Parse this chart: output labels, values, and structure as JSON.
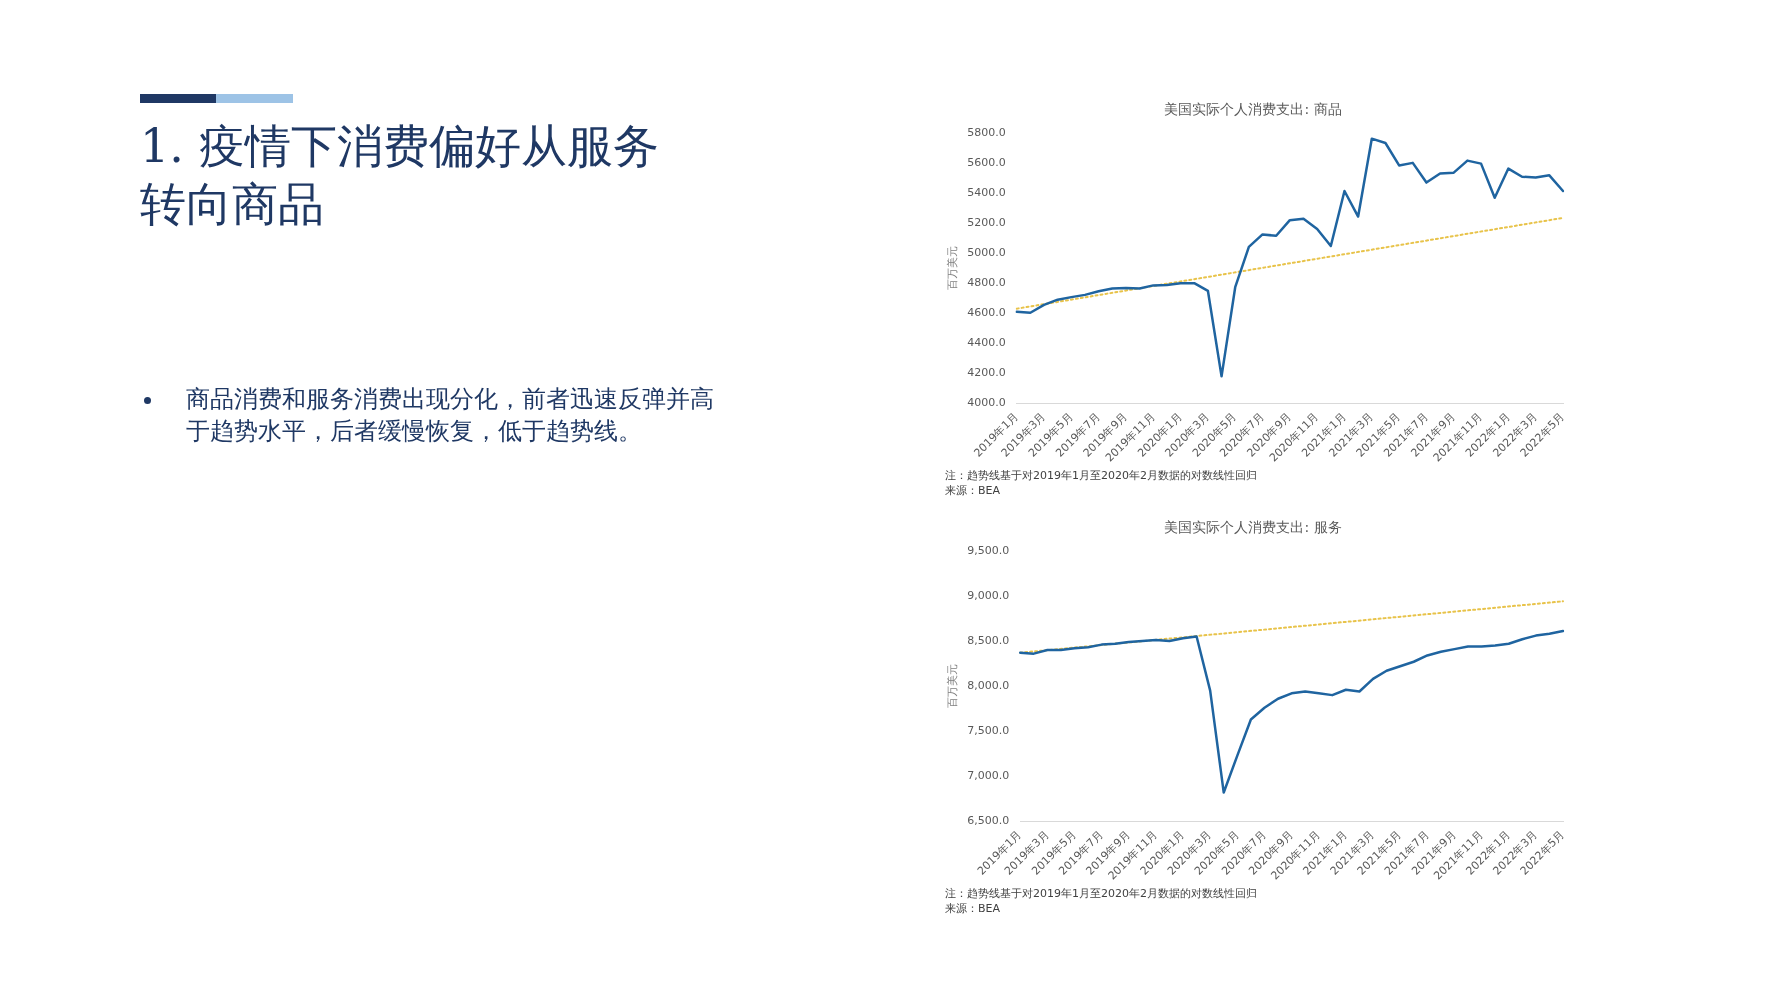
{
  "chart_data": [
    {
      "type": "other",
      "title": "1. 疫情下消费偏好从服务转向商品",
      "annotations": [
        "商品消费和服务消费出现分化，前者迅速反弹并高于趋势水平，后者缓慢恢复，低于趋势线。"
      ]
    },
    {
      "type": "line",
      "title": "美国实际个人消费支出: 商品",
      "ylabel": "百万美元",
      "marker": "none",
      "grid": false,
      "legend": false,
      "categories": [
        "2019年1月",
        null,
        "2019年3月",
        null,
        "2019年5月",
        null,
        "2019年7月",
        null,
        "2019年9月",
        null,
        "2019年11月",
        null,
        "2020年1月",
        null,
        "2020年3月",
        null,
        "2020年5月",
        null,
        "2020年7月",
        null,
        "2020年9月",
        null,
        "2020年11月",
        null,
        "2021年1月",
        null,
        "2021年3月",
        null,
        "2021年5月",
        null,
        "2021年7月",
        null,
        "2021年9月",
        null,
        "2021年11月",
        null,
        "2022年1月",
        null,
        "2022年3月",
        null,
        "2022年5月"
      ],
      "ylim": [
        4000,
        5800
      ],
      "yticks": [
        {
          "value": 4000,
          "label": "4000.0"
        },
        {
          "value": 4200,
          "label": "4200.0"
        },
        {
          "value": 4400,
          "label": "4400.0"
        },
        {
          "value": 4600,
          "label": "4600.0"
        },
        {
          "value": 4800,
          "label": "4800.0"
        },
        {
          "value": 5000,
          "label": "5000.0"
        },
        {
          "value": 5200,
          "label": "5200.0"
        },
        {
          "value": 5400,
          "label": "5400.0"
        },
        {
          "value": 5600,
          "label": "5600.0"
        },
        {
          "value": 5800,
          "label": "5800.0"
        }
      ],
      "series": [
        {
          "type": "line",
          "color": "#1f64a0",
          "line_style": "solid",
          "values": [
            4609,
            4603,
            4655,
            4690,
            4707,
            4722,
            4746,
            4764,
            4767,
            4764,
            4785,
            4788,
            4800,
            4800,
            4749,
            4180,
            4773,
            5041,
            5124,
            5115,
            5219,
            5228,
            5160,
            5047,
            5413,
            5243,
            5761,
            5732,
            5583,
            5600,
            5469,
            5529,
            5535,
            5615,
            5595,
            5368,
            5562,
            5508,
            5502,
            5517,
            5413
          ]
        },
        {
          "type": "line",
          "color": "#e8c34a",
          "line_style": "dotted",
          "x": [
            "2019年1月",
            "2022年5月"
          ],
          "values": [
            4630,
            5234
          ]
        }
      ],
      "annotations": [
        "注：趋势线基于对2019年1月至2020年2月数据的对数线性回归",
        "来源：BEA"
      ]
    },
    {
      "type": "line",
      "title": "美国实际个人消费支出: 服务",
      "ylabel": "百万美元",
      "marker": "none",
      "grid": false,
      "legend": false,
      "categories": [
        "2019年1月",
        null,
        "2019年3月",
        null,
        "2019年5月",
        null,
        "2019年7月",
        null,
        "2019年9月",
        null,
        "2019年11月",
        null,
        "2020年1月",
        null,
        "2020年3月",
        null,
        "2020年5月",
        null,
        "2020年7月",
        null,
        "2020年9月",
        null,
        "2020年11月",
        null,
        "2021年1月",
        null,
        "2021年3月",
        null,
        "2021年5月",
        null,
        "2021年7月",
        null,
        "2021年9月",
        null,
        "2021年11月",
        null,
        "2022年1月",
        null,
        "2022年3月",
        null,
        "2022年5月"
      ],
      "ylim": [
        6500,
        9500
      ],
      "yticks": [
        {
          "value": 6500,
          "label": "6,500.0"
        },
        {
          "value": 7000,
          "label": "7,000.0"
        },
        {
          "value": 7500,
          "label": "7,500.0"
        },
        {
          "value": 8000,
          "label": "8,000.0"
        },
        {
          "value": 8500,
          "label": "8,500.0"
        },
        {
          "value": 9000,
          "label": "9,000.0"
        },
        {
          "value": 9500,
          "label": "9,500.0"
        }
      ],
      "series": [
        {
          "type": "line",
          "color": "#1f64a0",
          "line_style": "solid",
          "values": [
            8370,
            8360,
            8400,
            8400,
            8420,
            8430,
            8460,
            8470,
            8490,
            8500,
            8510,
            8500,
            8530,
            8550,
            7950,
            6820,
            7230,
            7630,
            7760,
            7860,
            7920,
            7940,
            7920,
            7900,
            7960,
            7940,
            8080,
            8170,
            8220,
            8270,
            8340,
            8380,
            8410,
            8440,
            8440,
            8450,
            8470,
            8520,
            8560,
            8580,
            8610
          ]
        },
        {
          "type": "line",
          "color": "#e8c34a",
          "line_style": "dotted",
          "x": [
            "2019年1月",
            "2022年5月"
          ],
          "values": [
            8370,
            8940
          ]
        }
      ],
      "annotations": [
        "注：趋势线基于对2019年1月至2020年2月数据的对数线性回归",
        "来源：BEA"
      ]
    }
  ]
}
